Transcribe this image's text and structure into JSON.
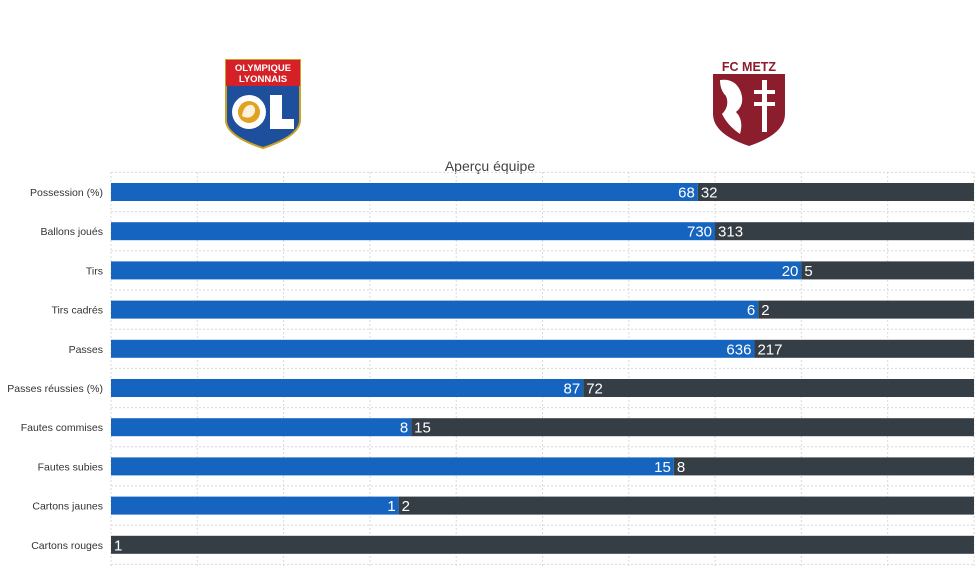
{
  "teams": {
    "home": {
      "name": "Olympique Lyonnais",
      "logo_text": [
        "OLYMPIQUE",
        "LYONNAIS"
      ],
      "color": "#1565c0"
    },
    "away": {
      "name": "FC Metz",
      "logo_text": "FC METZ",
      "color": "#353d45"
    }
  },
  "colors": {
    "home_bar": "#1565c0",
    "away_bar": "#353d45",
    "grid": "#d9d9d9",
    "label_text": "#333333"
  },
  "chart_data": {
    "type": "bar",
    "orientation": "horizontal-stacked-100",
    "title": "Aperçu équipe",
    "categories": [
      "Possession (%)",
      "Ballons joués",
      "Tirs",
      "Tirs cadrés",
      "Passes",
      "Passes réussies (%)",
      "Fautes commises",
      "Fautes subies",
      "Cartons jaunes",
      "Cartons rouges"
    ],
    "series": [
      {
        "values": [
          68,
          730,
          20,
          6,
          636,
          87,
          8,
          15,
          1,
          0
        ]
      },
      {
        "values": [
          32,
          313,
          5,
          2,
          217,
          72,
          15,
          8,
          2,
          1
        ]
      }
    ],
    "grid": true,
    "legend": "team logos above chart"
  }
}
